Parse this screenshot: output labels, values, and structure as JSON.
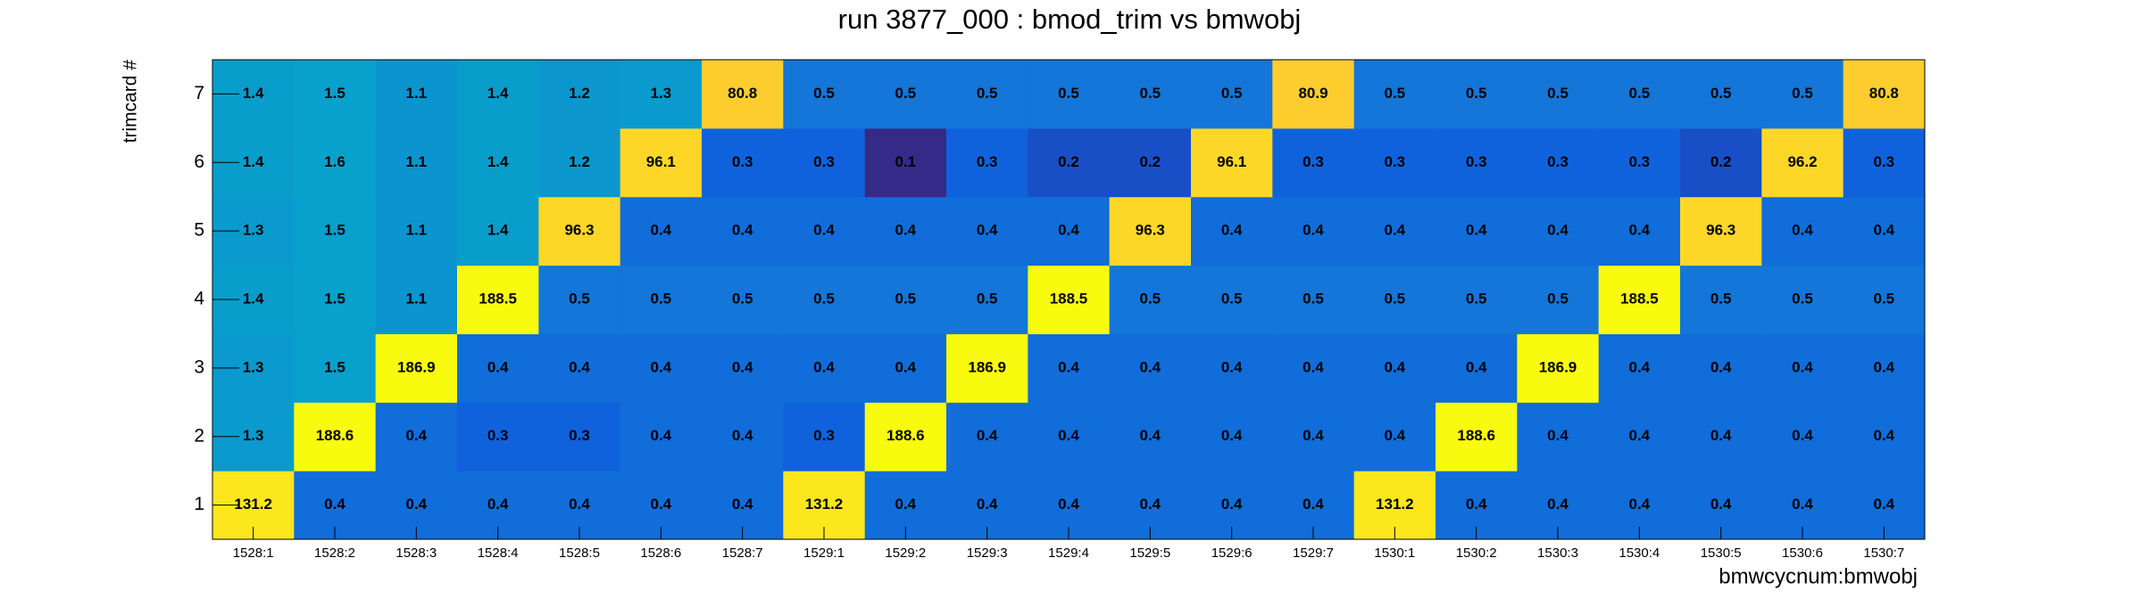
{
  "chart_data": {
    "type": "heatmap",
    "title": "run 3877_000 : bmod_trim vs bmwobj",
    "x_label": "bmwcycnum:bmwobj",
    "y_label": "trimcard #",
    "x": [
      "1528:1",
      "1528:2",
      "1528:3",
      "1528:4",
      "1528:5",
      "1528:6",
      "1528:7",
      "1529:1",
      "1529:2",
      "1529:3",
      "1529:4",
      "1529:5",
      "1529:6",
      "1529:7",
      "1530:1",
      "1530:2",
      "1530:3",
      "1530:4",
      "1530:5",
      "1530:6",
      "1530:7"
    ],
    "y": [
      "1",
      "2",
      "3",
      "4",
      "5",
      "6",
      "7"
    ],
    "z": [
      [
        131.2,
        0.4,
        0.4,
        0.4,
        0.4,
        0.4,
        0.4,
        131.2,
        0.4,
        0.4,
        0.4,
        0.4,
        0.4,
        0.4,
        131.2,
        0.4,
        0.4,
        0.4,
        0.4,
        0.4,
        0.4
      ],
      [
        1.3,
        188.6,
        0.4,
        0.3,
        0.3,
        0.4,
        0.4,
        0.3,
        188.6,
        0.4,
        0.4,
        0.4,
        0.4,
        0.4,
        0.4,
        188.6,
        0.4,
        0.4,
        0.4,
        0.4,
        0.4
      ],
      [
        1.3,
        1.5,
        186.9,
        0.4,
        0.4,
        0.4,
        0.4,
        0.4,
        0.4,
        186.9,
        0.4,
        0.4,
        0.4,
        0.4,
        0.4,
        0.4,
        186.9,
        0.4,
        0.4,
        0.4,
        0.4
      ],
      [
        1.4,
        1.5,
        1.1,
        188.5,
        0.5,
        0.5,
        0.5,
        0.5,
        0.5,
        0.5,
        188.5,
        0.5,
        0.5,
        0.5,
        0.5,
        0.5,
        0.5,
        188.5,
        0.5,
        0.5,
        0.5
      ],
      [
        1.3,
        1.5,
        1.1,
        1.4,
        96.3,
        0.4,
        0.4,
        0.4,
        0.4,
        0.4,
        0.4,
        96.3,
        0.4,
        0.4,
        0.4,
        0.4,
        0.4,
        0.4,
        96.3,
        0.4,
        0.4
      ],
      [
        1.4,
        1.6,
        1.1,
        1.4,
        1.2,
        96.1,
        0.3,
        0.3,
        0.1,
        0.3,
        0.2,
        0.2,
        96.1,
        0.3,
        0.3,
        0.3,
        0.3,
        0.3,
        0.2,
        96.2,
        0.3
      ],
      [
        1.4,
        1.5,
        1.1,
        1.4,
        1.2,
        1.3,
        80.8,
        0.5,
        0.5,
        0.5,
        0.5,
        0.5,
        0.5,
        80.9,
        0.5,
        0.5,
        0.5,
        0.5,
        0.5,
        0.5,
        80.8
      ]
    ],
    "color_scale": "log"
  }
}
